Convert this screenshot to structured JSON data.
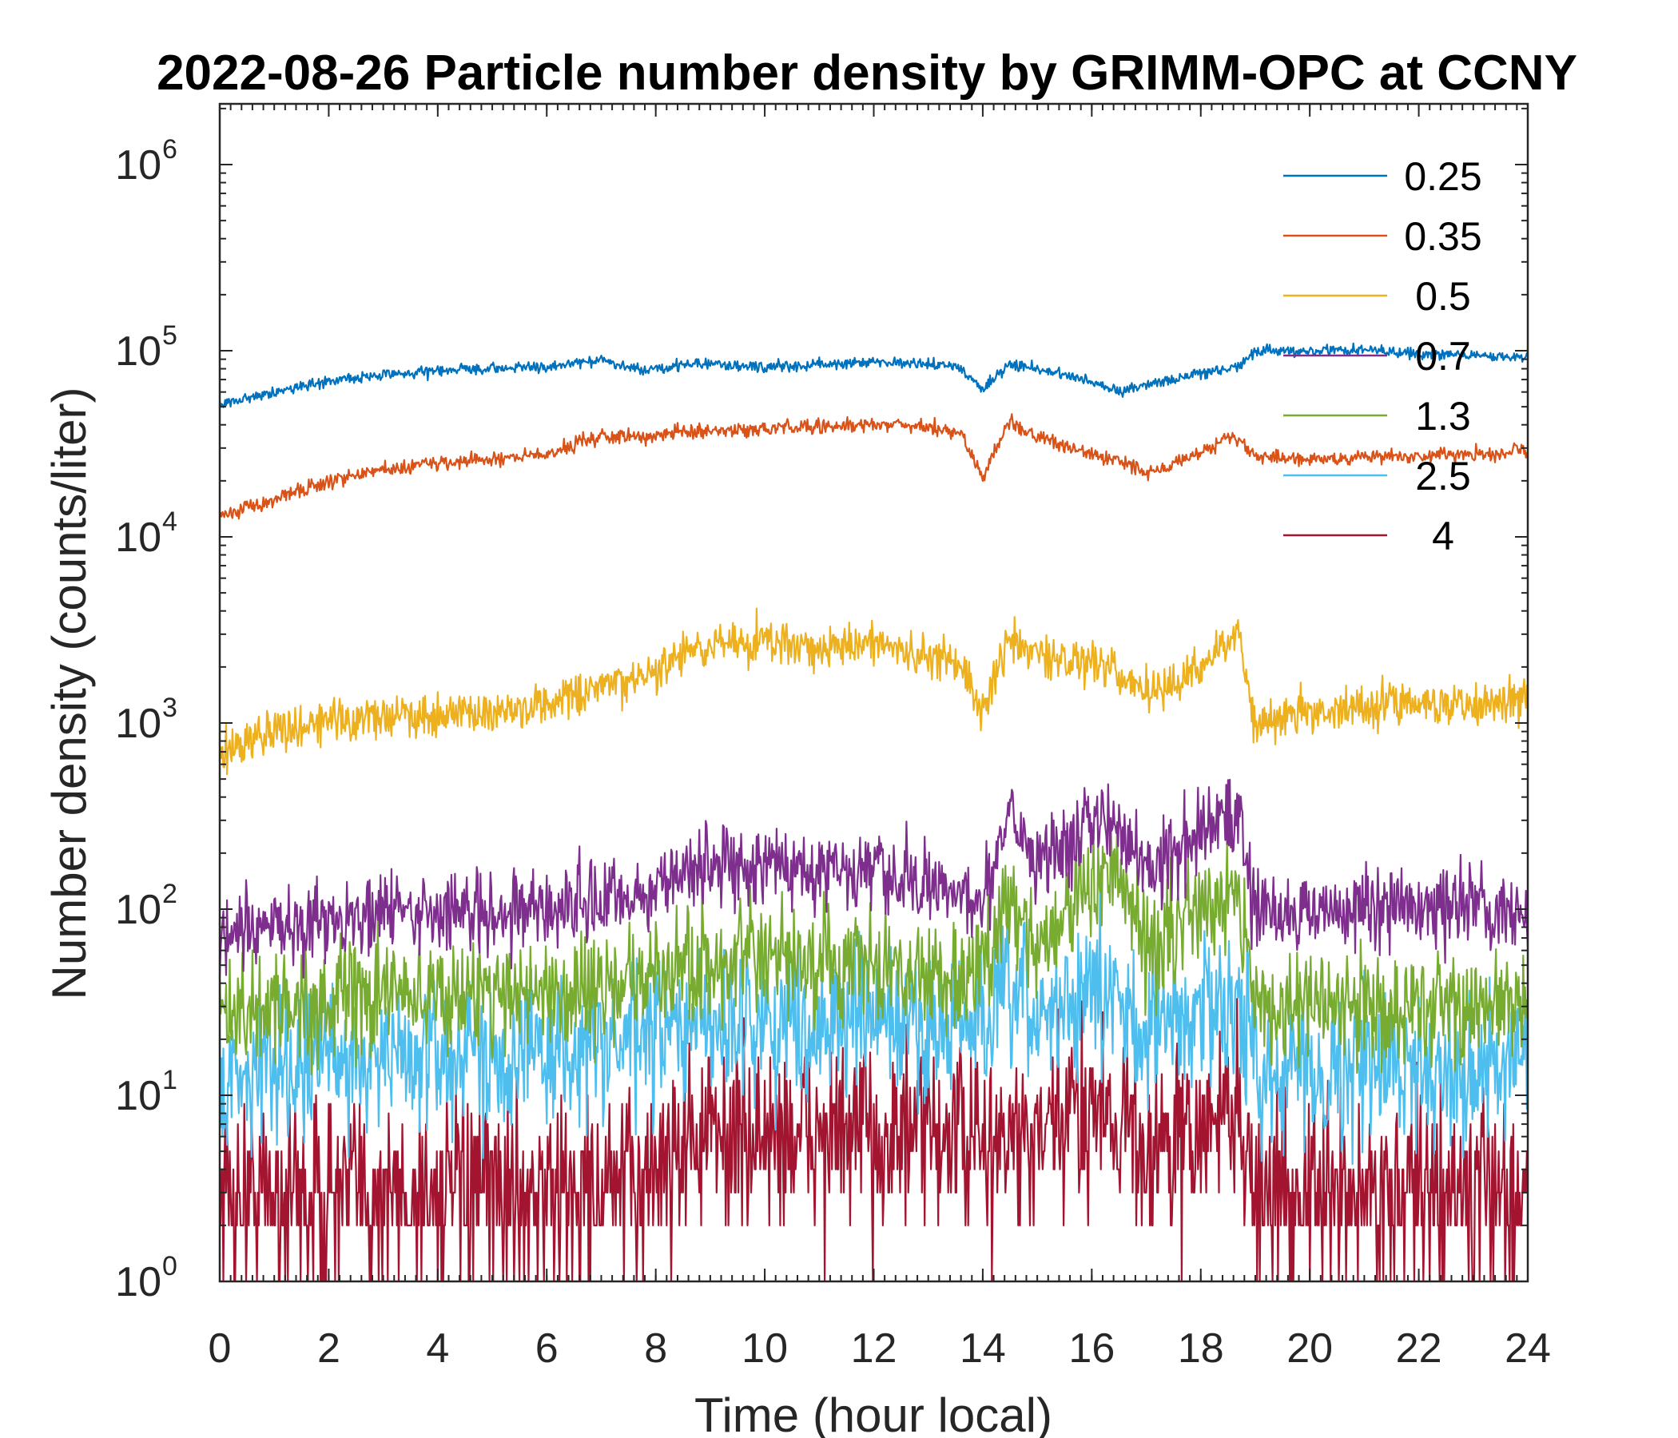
{
  "chart_data": {
    "type": "line",
    "title": "2022-08-26 Particle number density by GRIMM-OPC at CCNY",
    "xlabel": "Time (hour local)",
    "ylabel": "Number density (counts/liter)",
    "xlim": [
      0,
      24
    ],
    "ylim": [
      1,
      2000000
    ],
    "yscale": "log",
    "xticks": [
      0,
      2,
      4,
      6,
      8,
      10,
      12,
      14,
      16,
      18,
      20,
      22,
      24
    ],
    "yticks": [
      {
        "base": "10",
        "exp": "0",
        "value": 1
      },
      {
        "base": "10",
        "exp": "1",
        "value": 10
      },
      {
        "base": "10",
        "exp": "2",
        "value": 100
      },
      {
        "base": "10",
        "exp": "3",
        "value": 1000
      },
      {
        "base": "10",
        "exp": "4",
        "value": 10000
      },
      {
        "base": "10",
        "exp": "5",
        "value": 100000
      },
      {
        "base": "10",
        "exp": "6",
        "value": 1000000
      }
    ],
    "grid": false,
    "legend_position": "top-right",
    "x": [
      0,
      1,
      2,
      3,
      4,
      5,
      6,
      7,
      7.8,
      8.5,
      9,
      10,
      11,
      12,
      12.5,
      13,
      13.6,
      14,
      14.5,
      15,
      16,
      16.5,
      17,
      18,
      18.5,
      18.7,
      19,
      20,
      21,
      22,
      23,
      24
    ],
    "series": [
      {
        "name": "0.25",
        "color": "#0072BD",
        "noise": 0.015,
        "values": [
          52000,
          60000,
          68000,
          74000,
          78000,
          80000,
          82000,
          90000,
          78000,
          85000,
          84000,
          82000,
          84000,
          87000,
          86000,
          85000,
          80000,
          62000,
          86000,
          80000,
          68000,
          60000,
          66000,
          75000,
          80000,
          84000,
          98000,
          100000,
          102000,
          96000,
          94000,
          93000
        ]
      },
      {
        "name": "0.35",
        "color": "#D95319",
        "noise": 0.02,
        "values": [
          13000,
          16000,
          20000,
          23000,
          25000,
          26000,
          28000,
          35000,
          34000,
          37000,
          37000,
          38000,
          39000,
          40000,
          40000,
          39000,
          36000,
          21000,
          42000,
          34000,
          28000,
          26000,
          22000,
          28000,
          34000,
          33000,
          27000,
          26000,
          27000,
          27000,
          28000,
          29000
        ]
      },
      {
        "name": "0.5",
        "color": "#EDB120",
        "noise": 0.06,
        "values": [
          700,
          900,
          1050,
          1100,
          1100,
          1150,
          1250,
          1500,
          1800,
          2300,
          2600,
          2800,
          2600,
          2600,
          2500,
          2200,
          2200,
          1100,
          3000,
          2300,
          2100,
          1900,
          1400,
          2000,
          2800,
          2900,
          1000,
          1150,
          1250,
          1300,
          1250,
          1350
        ]
      },
      {
        "name": "0.7",
        "color": "#7E2F8E",
        "noise": 0.11,
        "values": [
          65,
          80,
          90,
          95,
          95,
          100,
          100,
          110,
          120,
          160,
          170,
          175,
          165,
          150,
          140,
          130,
          120,
          110,
          380,
          180,
          300,
          280,
          170,
          250,
          330,
          320,
          100,
          95,
          100,
          100,
          100,
          100
        ]
      },
      {
        "name": "1.3",
        "color": "#77AC30",
        "noise": 0.15,
        "values": [
          25,
          30,
          32,
          35,
          35,
          36,
          36,
          38,
          40,
          50,
          52,
          52,
          50,
          48,
          46,
          44,
          44,
          45,
          130,
          60,
          150,
          140,
          60,
          100,
          140,
          130,
          30,
          30,
          30,
          30,
          30,
          30
        ]
      },
      {
        "name": "2.5",
        "color": "#4DBEEE",
        "noise": 0.2,
        "values": [
          12,
          15,
          16,
          16,
          16,
          17,
          17,
          18,
          20,
          23,
          24,
          25,
          25,
          25,
          24,
          23,
          23,
          24,
          33,
          26,
          35,
          33,
          22,
          28,
          34,
          30,
          14,
          14,
          14,
          14,
          14,
          14
        ]
      },
      {
        "name": "4",
        "color": "#A2142F",
        "noise": 0.25,
        "values": [
          3,
          3,
          3,
          3,
          3,
          3,
          3,
          3,
          3.5,
          6,
          6,
          6,
          6,
          6,
          6,
          6,
          6,
          5,
          6,
          5,
          10,
          8,
          5,
          6,
          9,
          8,
          3,
          3,
          3,
          3,
          3,
          3
        ]
      }
    ]
  }
}
